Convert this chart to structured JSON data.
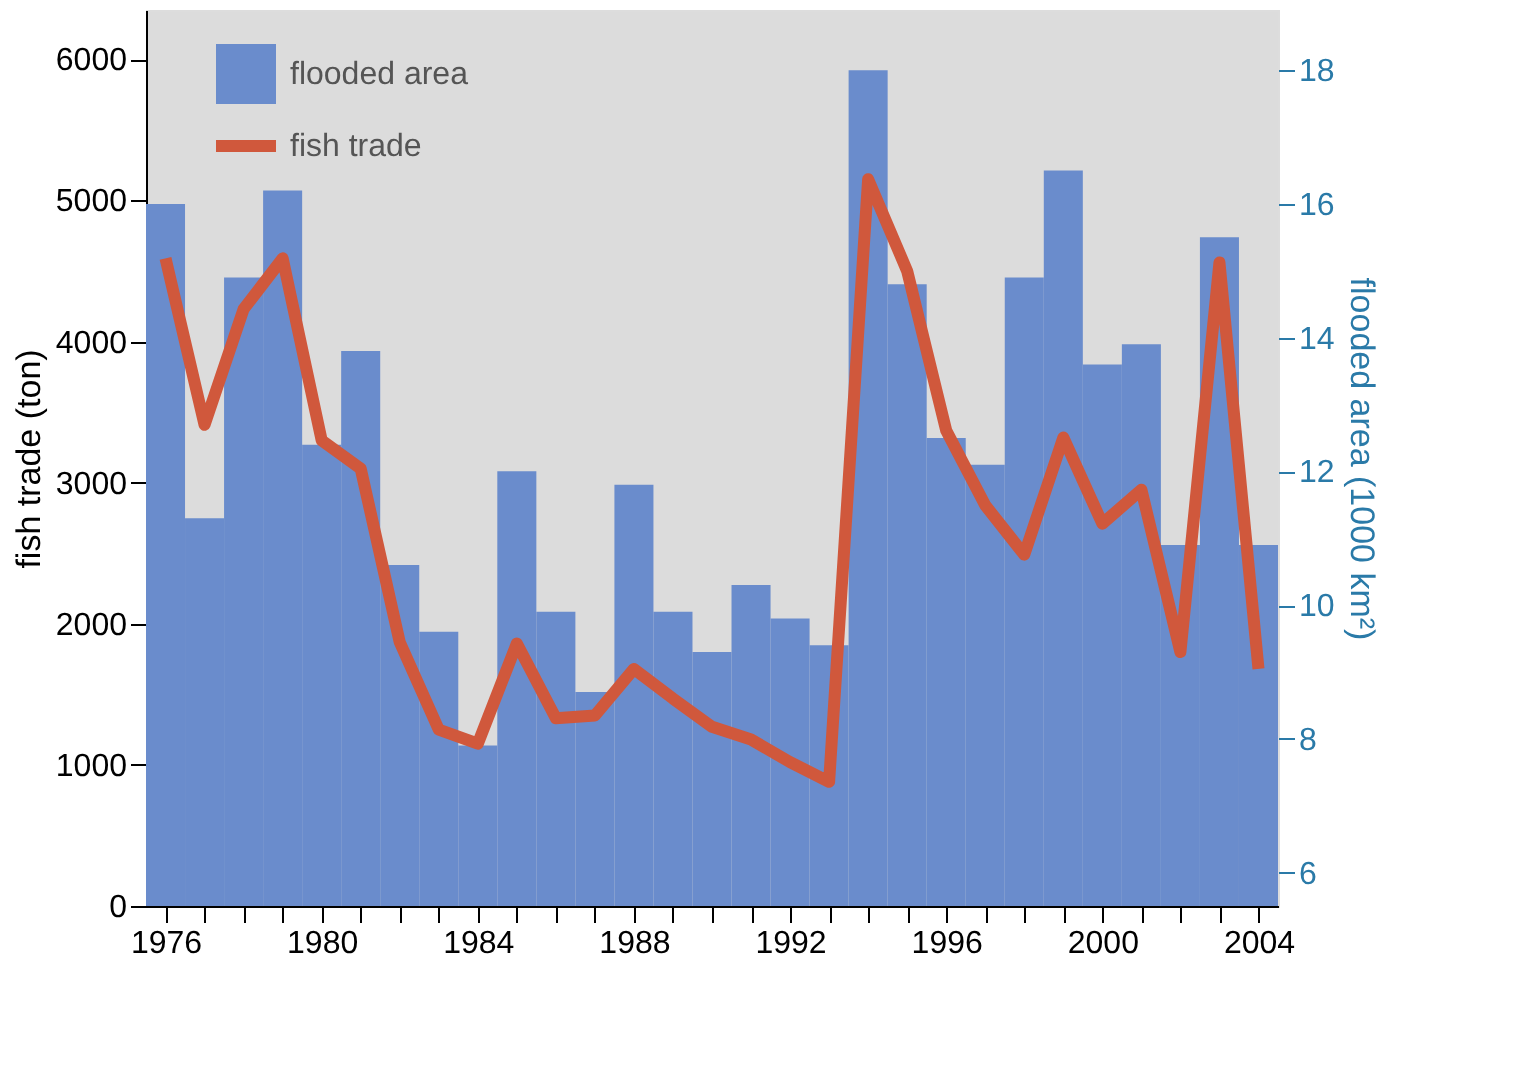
{
  "chart_data": {
    "type": "bar",
    "xlabel": null,
    "ylabel": "fish trade (ton)",
    "y2label": "flooded area (1000 km²)",
    "x": [
      1976,
      1977,
      1978,
      1979,
      1980,
      1981,
      1982,
      1983,
      1984,
      1985,
      1986,
      1987,
      1988,
      1989,
      1990,
      1991,
      1992,
      1993,
      1994,
      1995,
      1996,
      1997,
      1998,
      1999,
      2000,
      2001,
      2002,
      2003,
      2004
    ],
    "series": [
      {
        "name": "flooded area",
        "axis": "y2",
        "color": "#6a8ccc",
        "values": [
          16.0,
          11.3,
          14.9,
          16.2,
          12.4,
          13.8,
          10.6,
          9.6,
          7.9,
          12.0,
          9.9,
          8.7,
          11.8,
          9.9,
          9.3,
          10.3,
          9.8,
          9.4,
          18.0,
          14.8,
          12.5,
          12.1,
          14.9,
          16.5,
          13.6,
          13.9,
          10.9,
          15.5,
          10.9
        ]
      },
      {
        "name": "fish trade",
        "type": "line",
        "axis": "y",
        "color": "#d0583c",
        "values": [
          4590,
          3410,
          4230,
          4590,
          3300,
          3100,
          1870,
          1250,
          1150,
          1860,
          1330,
          1350,
          1680,
          1470,
          1270,
          1180,
          1020,
          880,
          5150,
          4500,
          3370,
          2840,
          2490,
          3320,
          2710,
          2950,
          1800,
          4560,
          1680
        ]
      }
    ],
    "xlim": [
      1975.5,
      2004.5
    ],
    "xticks": [
      1976,
      {
        "value": 1977,
        "label": null
      },
      {
        "value": 1978,
        "label": null
      },
      {
        "value": 1979,
        "label": null
      },
      1980,
      {
        "value": 1981,
        "label": null
      },
      {
        "value": 1982,
        "label": null
      },
      {
        "value": 1983,
        "label": null
      },
      1984,
      {
        "value": 1985,
        "label": null
      },
      {
        "value": 1986,
        "label": null
      },
      {
        "value": 1987,
        "label": null
      },
      1988,
      {
        "value": 1989,
        "label": null
      },
      {
        "value": 1990,
        "label": null
      },
      {
        "value": 1991,
        "label": null
      },
      1992,
      {
        "value": 1993,
        "label": null
      },
      {
        "value": 1994,
        "label": null
      },
      {
        "value": 1995,
        "label": null
      },
      1996,
      {
        "value": 1997,
        "label": null
      },
      {
        "value": 1998,
        "label": null
      },
      {
        "value": 1999,
        "label": null
      },
      2000,
      {
        "value": 2001,
        "label": null
      },
      {
        "value": 2002,
        "label": null
      },
      {
        "value": 2003,
        "label": null
      },
      2004
    ],
    "ylim": [
      0,
      6350
    ],
    "yticks": [
      0,
      1000,
      2000,
      3000,
      4000,
      5000,
      6000
    ],
    "y2lim": [
      5.5,
      18.9
    ],
    "y2ticks": [
      6,
      8,
      10,
      12,
      14,
      16,
      18
    ],
    "legend": "top left"
  }
}
